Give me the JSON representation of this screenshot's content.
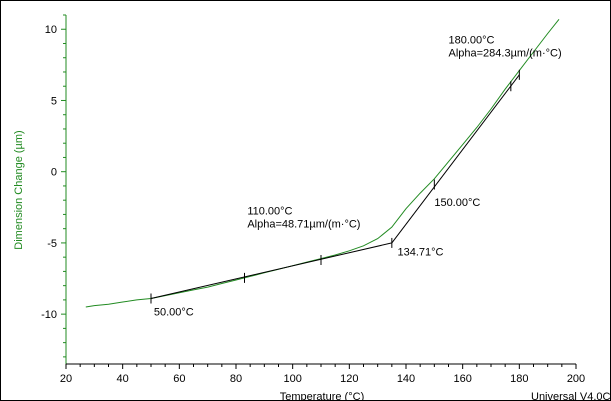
{
  "chart_data": {
    "type": "line",
    "xlabel": "Temperature (°C)",
    "ylabel": "Dimension Change (µm)",
    "xlim": [
      20,
      200
    ],
    "ylim": [
      -13.5,
      11
    ],
    "xticks": [
      20,
      40,
      60,
      80,
      100,
      120,
      140,
      160,
      180,
      200
    ],
    "yticks": [
      10,
      5,
      0,
      -5,
      -10
    ],
    "grid": false,
    "legend": "none",
    "footer": "Universal V4.0C",
    "colors": {
      "curve": "#228b22",
      "axis_left": "#228b22",
      "fit": "#000000"
    },
    "series": [
      {
        "x": [
          27,
          30,
          35,
          40,
          45,
          50,
          55,
          60,
          65,
          70,
          75,
          80,
          85,
          90,
          95,
          100,
          105,
          110,
          115,
          120,
          125,
          130,
          135,
          140,
          145,
          150,
          155,
          160,
          165,
          170,
          175,
          180,
          185,
          190,
          194
        ],
        "y": [
          -9.5,
          -9.4,
          -9.3,
          -9.15,
          -9.0,
          -8.9,
          -8.7,
          -8.5,
          -8.3,
          -8.1,
          -7.85,
          -7.6,
          -7.35,
          -7.1,
          -6.85,
          -6.6,
          -6.35,
          -6.1,
          -5.85,
          -5.55,
          -5.2,
          -4.7,
          -3.9,
          -2.6,
          -1.5,
          -0.5,
          0.7,
          1.9,
          3.1,
          4.4,
          5.8,
          7.1,
          8.4,
          9.7,
          10.7
        ]
      }
    ],
    "fit_lines": [
      {
        "x": [
          50,
          135
        ],
        "y": [
          -8.9,
          -5.0
        ]
      },
      {
        "x": [
          135,
          180
        ],
        "y": [
          -5.0,
          6.8
        ]
      }
    ],
    "markers": [
      {
        "x": 50,
        "y": -8.9
      },
      {
        "x": 83,
        "y": -7.45
      },
      {
        "x": 110,
        "y": -6.2
      },
      {
        "x": 135,
        "y": -5.0
      },
      {
        "x": 150,
        "y": -0.9
      },
      {
        "x": 177,
        "y": 6.0
      },
      {
        "x": 180,
        "y": 6.8
      }
    ],
    "annotations": [
      {
        "lines": [
          "180.00°C",
          "Alpha=284.3µm/(m·°C)"
        ],
        "x": 155,
        "y": 9.0
      },
      {
        "lines": [
          "110.00°C",
          "Alpha=48.71µm/(m·°C)"
        ],
        "x": 84,
        "y": -3.0
      },
      {
        "lines": [
          "150.00°C"
        ],
        "x": 150,
        "y": -2.4
      },
      {
        "lines": [
          "134.71°C"
        ],
        "x": 137,
        "y": -5.9
      },
      {
        "lines": [
          "50.00°C"
        ],
        "x": 51,
        "y": -10.1
      }
    ]
  }
}
